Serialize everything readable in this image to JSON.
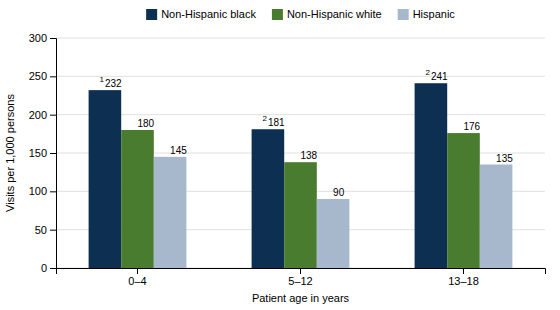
{
  "chart_data": {
    "type": "bar",
    "categories": [
      "0–4",
      "5–12",
      "13–18"
    ],
    "series": [
      {
        "name": "Non-Hispanic black",
        "color": "#0d2f52",
        "values": [
          232,
          181,
          241
        ],
        "superscripts": [
          "1",
          "2",
          "2"
        ]
      },
      {
        "name": "Non-Hispanic white",
        "color": "#4a7c2f",
        "values": [
          180,
          138,
          176
        ]
      },
      {
        "name": "Hispanic",
        "color": "#a8b8cc",
        "values": [
          145,
          90,
          135
        ]
      }
    ],
    "xlabel": "Patient age in years",
    "ylabel": "Visits per 1,000 persons",
    "ylim": [
      0,
      300
    ],
    "yticks": [
      0,
      50,
      100,
      150,
      200,
      250,
      300
    ],
    "grid": true,
    "legend": "top",
    "data_labels": true
  }
}
